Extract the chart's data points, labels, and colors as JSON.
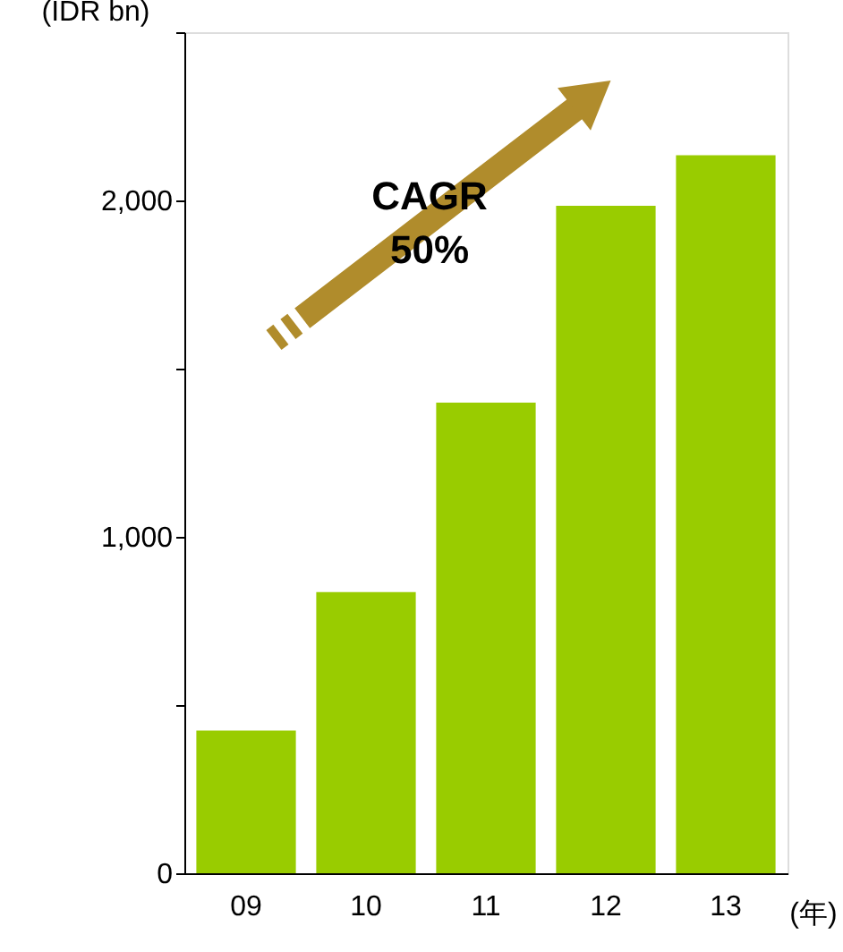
{
  "chart_data": {
    "type": "bar",
    "categories": [
      "09",
      "10",
      "11",
      "12",
      "13"
    ],
    "values": [
      424,
      836,
      1399,
      1984,
      2134
    ],
    "color": "#99cc00",
    "ylabel": "(IDR bn)",
    "xlabel": "(年)",
    "ylim": [
      0,
      2500
    ],
    "yticks": [
      0,
      {
        "value": 500,
        "label": null
      },
      {
        "value": 1000,
        "label": "1,000"
      },
      {
        "value": 1500,
        "label": null
      },
      {
        "value": 2000,
        "label": "2,000"
      },
      {
        "value": 2500,
        "label": null
      }
    ],
    "annotations": [
      "CAGR\n50%"
    ],
    "grid": false
  }
}
